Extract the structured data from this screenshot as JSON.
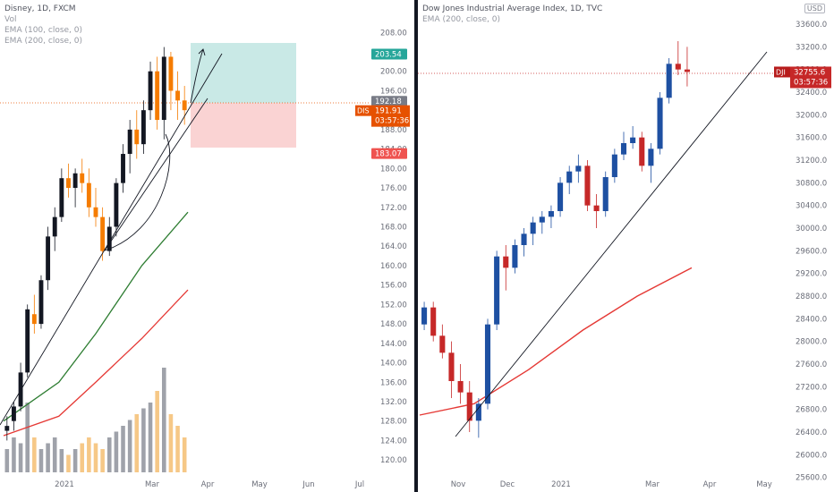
{
  "left_panel": {
    "legend": [
      "Disney, 1D, FXCM",
      "Vol",
      "EMA (100, close, 0)",
      "EMA (200, close, 0)"
    ],
    "y_ticks": [
      "208.00",
      "204.00",
      "200.00",
      "196.00",
      "192.00",
      "188.00",
      "184.00",
      "180.00",
      "176.00",
      "172.00",
      "168.00",
      "164.00",
      "160.00",
      "156.00",
      "152.00",
      "148.00",
      "144.00",
      "140.00",
      "136.00",
      "132.00",
      "128.00",
      "124.00",
      "120.00"
    ],
    "x_ticks": [
      "2021",
      "Mar",
      "Apr",
      "May",
      "Jun",
      "Jul"
    ],
    "badges": {
      "target": "203.54",
      "prev_close": "192.18",
      "symbol": "DIS",
      "last": "191.91",
      "countdown": "03:57:36",
      "stop": "183.07"
    }
  },
  "right_panel": {
    "legend": [
      "Dow Jones Industrial Average Index, 1D, TVC",
      "EMA (200, close, 0)"
    ],
    "y_ticks": [
      "33600.0",
      "33200.0",
      "32800.0",
      "32400.0",
      "32000.0",
      "31600.0",
      "31200.0",
      "30800.0",
      "30400.0",
      "30000.0",
      "29600.0",
      "29200.0",
      "28800.0",
      "28400.0",
      "28000.0",
      "27600.0",
      "27200.0",
      "26800.0",
      "26400.0",
      "26000.0",
      "25600.0"
    ],
    "x_ticks": [
      "Nov",
      "Dec",
      "2021",
      "Mar",
      "Apr",
      "May"
    ],
    "currency": "USD",
    "badges": {
      "symbol": "DJI",
      "last": "32755.6",
      "countdown": "03:57:36"
    }
  },
  "chart_data": [
    {
      "type": "candlestick",
      "title": "Disney, 1D, FXCM",
      "ylim": [
        118,
        211
      ],
      "series": [
        {
          "name": "Disney",
          "ohlc_approx": [
            [
              126,
              129,
              124,
              127
            ],
            [
              128,
              132,
              126,
              131
            ],
            [
              131,
              140,
              130,
              138
            ],
            [
              138,
              152,
              137,
              151
            ],
            [
              150,
              154,
              146,
              148
            ],
            [
              148,
              158,
              147,
              157
            ],
            [
              157,
              168,
              155,
              166
            ],
            [
              166,
              172,
              163,
              170
            ],
            [
              170,
              180,
              169,
              178
            ],
            [
              178,
              181,
              174,
              176
            ],
            [
              176,
              180,
              172,
              179
            ],
            [
              179,
              182,
              175,
              177
            ],
            [
              177,
              180,
              170,
              172
            ],
            [
              172,
              176,
              168,
              170
            ],
            [
              170,
              172,
              161,
              163
            ],
            [
              163,
              170,
              162,
              168
            ],
            [
              168,
              178,
              166,
              177
            ],
            [
              177,
              185,
              175,
              183
            ],
            [
              183,
              190,
              179,
              188
            ],
            [
              188,
              192,
              182,
              185
            ],
            [
              185,
              194,
              183,
              192
            ],
            [
              192,
              202,
              190,
              200
            ],
            [
              200,
              203,
              188,
              190
            ],
            [
              190,
              205,
              186,
              203
            ],
            [
              203,
              204,
              192,
              196
            ],
            [
              196,
              200,
              190,
              194
            ],
            [
              194,
              197,
              189,
              192
            ]
          ]
        },
        {
          "name": "Vol",
          "values": [
            0.2,
            0.3,
            0.25,
            0.6,
            0.3,
            0.2,
            0.25,
            0.3,
            0.2,
            0.15,
            0.2,
            0.25,
            0.3,
            0.25,
            0.2,
            0.3,
            0.35,
            0.4,
            0.45,
            0.5,
            0.55,
            0.6,
            0.7,
            0.9,
            0.5,
            0.4,
            0.3
          ]
        },
        {
          "name": "EMA (100, close, 0)",
          "values": [
            [
              0,
              128
            ],
            [
              0.3,
              136
            ],
            [
              0.5,
              146
            ],
            [
              0.75,
              160
            ],
            [
              1.0,
              171
            ]
          ]
        },
        {
          "name": "EMA (200, close, 0)",
          "values": [
            [
              0,
              125
            ],
            [
              0.3,
              129
            ],
            [
              0.5,
              136
            ],
            [
              0.75,
              145
            ],
            [
              1.0,
              155
            ]
          ]
        }
      ],
      "trade": {
        "entry": 191.91,
        "target": 203.54,
        "stop": 183.07
      }
    },
    {
      "type": "candlestick",
      "title": "Dow Jones Industrial Average Index, 1D, TVC",
      "ylim": [
        25500,
        33900
      ],
      "series": [
        {
          "name": "Dow Jones",
          "ohlc_approx": [
            [
              28300,
              28700,
              28200,
              28600
            ],
            [
              28600,
              28700,
              28000,
              28100
            ],
            [
              28100,
              28300,
              27700,
              27800
            ],
            [
              27800,
              28000,
              27000,
              27300
            ],
            [
              27300,
              27600,
              26900,
              27100
            ],
            [
              27100,
              27300,
              26400,
              26600
            ],
            [
              26600,
              27000,
              26300,
              26900
            ],
            [
              26900,
              28400,
              26800,
              28300
            ],
            [
              28300,
              29600,
              28200,
              29500
            ],
            [
              29500,
              29700,
              28900,
              29300
            ],
            [
              29300,
              29800,
              29200,
              29700
            ],
            [
              29700,
              30000,
              29500,
              29900
            ],
            [
              29900,
              30200,
              29700,
              30100
            ],
            [
              30100,
              30300,
              29900,
              30200
            ],
            [
              30200,
              30400,
              30000,
              30300
            ],
            [
              30300,
              30900,
              30200,
              30800
            ],
            [
              30800,
              31100,
              30600,
              31000
            ],
            [
              31000,
              31300,
              30800,
              31100
            ],
            [
              31100,
              31200,
              30300,
              30400
            ],
            [
              30400,
              30600,
              30000,
              30300
            ],
            [
              30300,
              31000,
              30200,
              30900
            ],
            [
              30900,
              31400,
              30800,
              31300
            ],
            [
              31300,
              31700,
              31200,
              31500
            ],
            [
              31500,
              31800,
              31400,
              31600
            ],
            [
              31600,
              31700,
              31000,
              31100
            ],
            [
              31100,
              31500,
              30800,
              31400
            ],
            [
              31400,
              32400,
              31300,
              32300
            ],
            [
              32300,
              33000,
              32200,
              32900
            ],
            [
              32900,
              33300,
              32700,
              32800
            ],
            [
              32800,
              33200,
              32500,
              32756
            ]
          ]
        },
        {
          "name": "EMA (200, close, 0)",
          "values": [
            [
              0,
              26700
            ],
            [
              0.2,
              26900
            ],
            [
              0.4,
              27500
            ],
            [
              0.6,
              28200
            ],
            [
              0.8,
              28800
            ],
            [
              1.0,
              29300
            ]
          ]
        }
      ],
      "last": 32755.6
    }
  ]
}
